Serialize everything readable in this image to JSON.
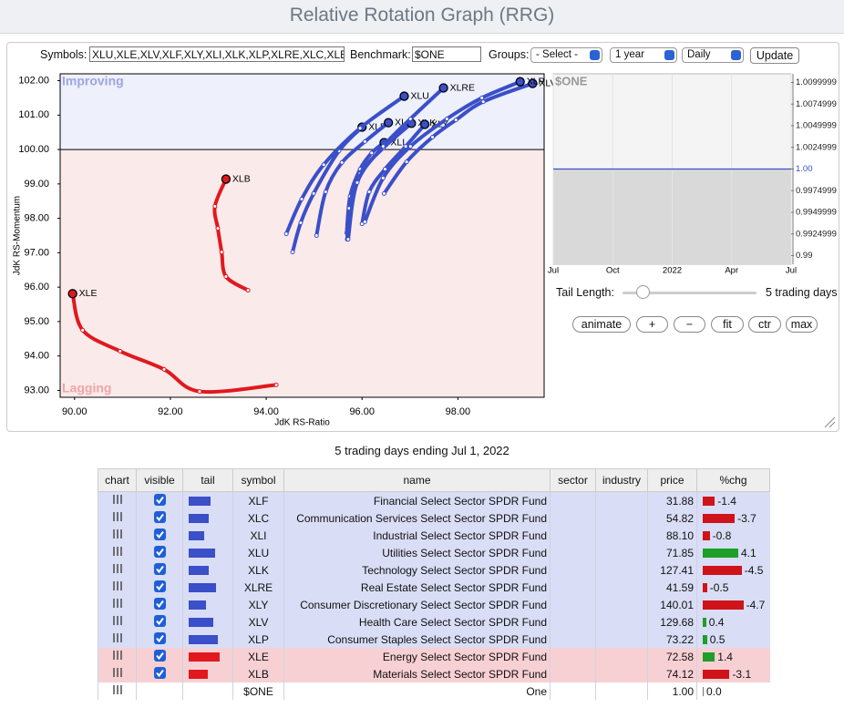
{
  "header": {
    "title": "Relative Rotation Graph (RRG)"
  },
  "controls": {
    "symbols_label": "Symbols:",
    "symbols": "XLU,XLE,XLV,XLF,XLY,XLI,XLK,XLP,XLRE,XLC,XLB",
    "benchmark_label": "Benchmark:",
    "benchmark": "$ONE",
    "groups_label": "Groups:",
    "groups": "- Select -",
    "period": "1 year",
    "interval": "Daily",
    "update": "Update"
  },
  "chart_data": [
    {
      "type": "scatter",
      "x_label": "JdK RS-Ratio",
      "y_label": "JdK RS-Momentum",
      "quadrants": {
        "upper": "Improving",
        "lower": "Lagging"
      },
      "ylevel": 100,
      "xlim": [
        89.7,
        99.8
      ],
      "ylim": [
        92.8,
        102.2
      ],
      "xticks": [
        {
          "value": 90,
          "label": "90.00"
        },
        {
          "value": 92,
          "label": "92.00"
        },
        {
          "value": 94,
          "label": "94.00"
        },
        {
          "value": 96,
          "label": "96.00"
        },
        {
          "value": 98,
          "label": "98.00"
        }
      ],
      "yticks": [
        {
          "value": 93,
          "label": "93.00"
        },
        {
          "value": 94,
          "label": "94.00"
        },
        {
          "value": 95,
          "label": "95.00"
        },
        {
          "value": 96,
          "label": "96.00"
        },
        {
          "value": 97,
          "label": "97.00"
        },
        {
          "value": 98,
          "label": "98.00"
        },
        {
          "value": 99,
          "label": "99.00"
        },
        {
          "value": 100,
          "label": "100.00"
        },
        {
          "value": 101,
          "label": "101.00"
        },
        {
          "value": 102,
          "label": "102.00"
        }
      ],
      "series": [
        {
          "name": "XLF",
          "color": "#3a4fc8",
          "x": [
            94.55,
            94.72,
            94.99,
            95.52,
            96.0
          ],
          "y": [
            97.02,
            97.87,
            98.72,
            99.96,
            100.65
          ]
        },
        {
          "name": "XLC",
          "color": "#3a4fc8",
          "x": [
            95.05,
            95.24,
            95.58,
            96.06,
            96.55
          ],
          "y": [
            97.5,
            98.77,
            99.62,
            100.23,
            100.78
          ]
        },
        {
          "name": "XLI",
          "color": "#3a4fc8",
          "x": [
            95.68,
            95.75,
            95.96,
            96.2,
            96.46
          ],
          "y": [
            97.58,
            98.64,
            99.43,
            99.9,
            100.2
          ]
        },
        {
          "name": "XLU",
          "color": "#3a4fc8",
          "x": [
            94.42,
            94.74,
            95.2,
            95.96,
            96.88
          ],
          "y": [
            97.55,
            98.56,
            99.56,
            100.62,
            101.55
          ]
        },
        {
          "name": "XLK",
          "color": "#3a4fc8",
          "x": [
            95.69,
            95.73,
            95.96,
            96.44,
            97.03
          ],
          "y": [
            97.39,
            98.29,
            99.3,
            100.04,
            100.76
          ]
        },
        {
          "name": "XLRE",
          "color": "#3a4fc8",
          "x": [
            95.71,
            95.9,
            96.44,
            97.01,
            97.7
          ],
          "y": [
            97.39,
            99.04,
            100.09,
            100.89,
            101.79
          ]
        },
        {
          "name": "XLY",
          "color": "#3a4fc8",
          "x": [
            96.0,
            96.15,
            96.48,
            96.91,
            97.31
          ],
          "y": [
            97.84,
            98.77,
            99.43,
            100.09,
            100.73
          ]
        },
        {
          "name": "XLV",
          "color": "#3a4fc8",
          "x": [
            96.46,
            96.93,
            97.47,
            97.96,
            98.53,
            99.56
          ],
          "y": [
            98.72,
            99.64,
            100.36,
            100.86,
            101.39,
            101.92
          ]
        },
        {
          "name": "XLP",
          "color": "#3a4fc8",
          "x": [
            96.06,
            96.44,
            97.01,
            97.77,
            98.5,
            99.3
          ],
          "y": [
            97.9,
            99.17,
            100.09,
            100.89,
            101.5,
            101.97
          ]
        },
        {
          "name": "XLE",
          "color": "#e0191e",
          "x": [
            94.21,
            92.61,
            91.87,
            90.95,
            90.17,
            89.96
          ],
          "y": [
            93.16,
            92.97,
            93.61,
            94.14,
            94.75,
            95.81
          ]
        },
        {
          "name": "XLB",
          "color": "#e0191e",
          "x": [
            93.62,
            93.16,
            93.07,
            92.99,
            92.93,
            93.16
          ],
          "y": [
            95.91,
            96.31,
            97.02,
            97.71,
            98.35,
            99.14
          ]
        }
      ]
    },
    {
      "type": "area",
      "title": "$ONE",
      "color": "#3a4fc8",
      "categories": [
        "Jul",
        "Oct",
        "2022",
        "Apr",
        "Jul"
      ],
      "values": [
        1,
        1,
        1,
        1,
        1
      ],
      "ylim": [
        0.989,
        1.011
      ],
      "yticks": [
        {
          "value": 1.01,
          "label": "1.0099999"
        },
        {
          "value": 1.0075,
          "label": "1.0074999"
        },
        {
          "value": 1.005,
          "label": "1.0049999"
        },
        {
          "value": 1.0025,
          "label": "1.0024999"
        },
        {
          "value": 1,
          "label": "1.00"
        },
        {
          "value": 0.9975,
          "label": "0.9974999"
        },
        {
          "value": 0.995,
          "label": "0.9949999"
        },
        {
          "value": 0.9925,
          "label": "0.9924999"
        },
        {
          "value": 0.99,
          "label": "0.99"
        }
      ]
    }
  ],
  "tail_control": {
    "label": "Tail Length:",
    "value": "5 trading days"
  },
  "buttons": [
    "animate",
    "+",
    "−",
    "fit",
    "ctr",
    "max"
  ],
  "table": {
    "caption": "5 trading days ending Jul 1, 2022",
    "columns": [
      "chart",
      "visible",
      "tail",
      "symbol",
      "name",
      "sector",
      "industry",
      "price",
      "%chg"
    ],
    "rows": [
      {
        "symbol": "XLF",
        "name": "Financial Select Sector SPDR Fund",
        "price": "31.88",
        "chg": -1.4
      },
      {
        "symbol": "XLC",
        "name": "Communication Services Select Sector SPDR Fund",
        "price": "54.82",
        "chg": -3.7
      },
      {
        "symbol": "XLI",
        "name": "Industrial Select Sector SPDR Fund",
        "price": "88.10",
        "chg": -0.8
      },
      {
        "symbol": "XLU",
        "name": "Utilities Select Sector SPDR Fund",
        "price": "71.85",
        "chg": 4.1
      },
      {
        "symbol": "XLK",
        "name": "Technology Select Sector SPDR Fund",
        "price": "127.41",
        "chg": -4.5
      },
      {
        "symbol": "XLRE",
        "name": "Real Estate Select Sector SPDR Fund",
        "price": "41.59",
        "chg": -0.5
      },
      {
        "symbol": "XLY",
        "name": "Consumer Discretionary Select Sector SPDR Fund",
        "price": "140.01",
        "chg": -4.7
      },
      {
        "symbol": "XLV",
        "name": "Health Care Select Sector SPDR Fund",
        "price": "129.68",
        "chg": 0.4
      },
      {
        "symbol": "XLP",
        "name": "Consumer Staples Select Sector SPDR Fund",
        "price": "73.22",
        "chg": 0.5
      },
      {
        "symbol": "XLE",
        "name": "Energy Select Sector SPDR Fund",
        "price": "72.58",
        "chg": 1.4
      },
      {
        "symbol": "XLB",
        "name": "Materials Select Sector SPDR Fund",
        "price": "74.12",
        "chg": -3.1
      },
      {
        "symbol": "$ONE",
        "name": "One",
        "price": "1.00",
        "chg": 0,
        "chg_label": "0.0"
      }
    ]
  }
}
